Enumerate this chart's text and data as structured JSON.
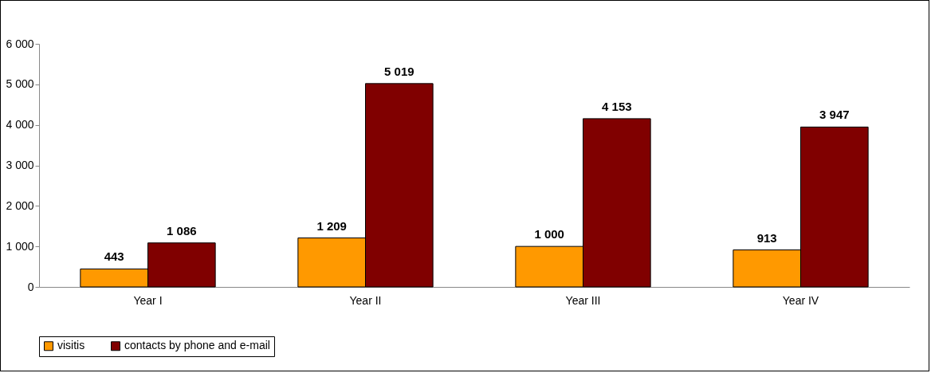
{
  "chart_data": {
    "type": "bar",
    "categories": [
      "Year I",
      "Year II",
      "Year III",
      "Year IV"
    ],
    "series": [
      {
        "name": "visitis",
        "color": "#ff9900",
        "values": [
          443,
          1209,
          1000,
          913
        ],
        "value_labels": [
          "443",
          "1 209",
          "1 000",
          "913"
        ]
      },
      {
        "name": "contacts by phone and e-mail",
        "color": "#800000",
        "values": [
          1086,
          5019,
          4153,
          3947
        ],
        "value_labels": [
          "1 086",
          "5 019",
          "4 153",
          "3 947"
        ]
      }
    ],
    "ylim": [
      0,
      6000
    ],
    "yticks": [
      {
        "value": 0,
        "label": "0"
      },
      {
        "value": 1000,
        "label": "1 000"
      },
      {
        "value": 2000,
        "label": "2 000"
      },
      {
        "value": 3000,
        "label": "3 000"
      },
      {
        "value": 4000,
        "label": "4 000"
      },
      {
        "value": 5000,
        "label": "5 000"
      },
      {
        "value": 6000,
        "label": "6 000"
      }
    ],
    "grid": false,
    "legend": "bottom"
  }
}
